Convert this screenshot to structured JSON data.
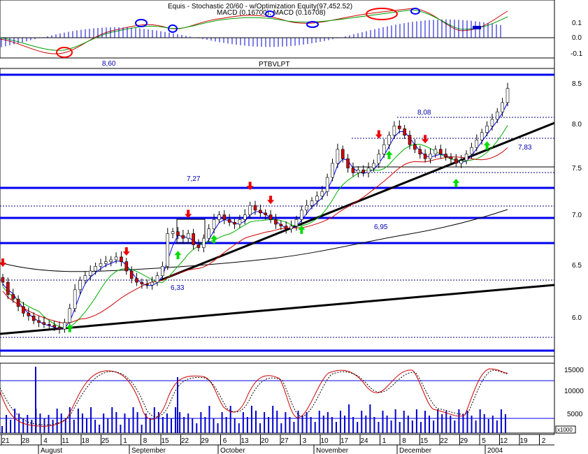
{
  "colors": {
    "background": "#ffffff",
    "hline_blue": "#0000ee",
    "trend_black": "#000000",
    "candle_up_fill": "#ffffff",
    "candle_down_fill": "#d00000",
    "ma_blue": "#0000ff",
    "ma_green": "#00b000",
    "ma_red": "#cc0000",
    "macd_bar": "#0000cc",
    "volume_bar": "#0000cc",
    "buy_arrow": "#00dd00",
    "sell_arrow": "#ee0000",
    "annotation_text": "#0000aa",
    "marker_circle_blue": "#0000ff",
    "marker_circle_red": "#ff0000"
  },
  "macd_panel": {
    "legend_line1": "Equis - Stochastic 20/60 - w/Optimization Equity(97,452.52)",
    "legend_line2": "MACD (0.16700), MACD (0.16708)",
    "y_ticks": [
      "0.1",
      "0.0",
      "-0.1"
    ]
  },
  "price_panel": {
    "symbol": "PTBVLPT",
    "y_ticks": [
      "8.5",
      "8.0",
      "7.5",
      "7.0",
      "6.5",
      "6.0"
    ],
    "annotations": [
      "8,60",
      "8,08",
      "7,83",
      "7,27",
      "6,95",
      "6,33"
    ]
  },
  "volume_panel": {
    "y_ticks": [
      "15000",
      "10000",
      "5000"
    ],
    "scale_label": "x1000"
  },
  "x_axis": {
    "day_labels": [
      "21",
      "28",
      "4",
      "11",
      "18",
      "25",
      "1",
      "8",
      "15",
      "22",
      "29",
      "6",
      "13",
      "20",
      "27",
      "3",
      "10",
      "17",
      "24",
      "1",
      "8",
      "15",
      "22",
      "29",
      "5",
      "12",
      "19",
      "2"
    ],
    "month_labels": [
      "August",
      "September",
      "October",
      "November",
      "December",
      "2004"
    ]
  },
  "chart_data": {
    "type": "candlestick",
    "title": "PTBVLPT",
    "x_range": [
      "Jul 2003",
      "Jan 2004"
    ],
    "price_ylim": [
      5.65,
      8.75
    ],
    "horizontal_levels": [
      8.6,
      8.08,
      7.83,
      7.27,
      6.95,
      6.33
    ],
    "close_series": [
      6.38,
      6.25,
      6.2,
      6.12,
      6.05,
      6.02,
      5.97,
      5.95,
      5.93,
      5.92,
      5.9,
      5.88,
      5.95,
      6.1,
      6.3,
      6.4,
      6.45,
      6.5,
      6.55,
      6.58,
      6.6,
      6.62,
      6.65,
      6.6,
      6.5,
      6.42,
      6.38,
      6.36,
      6.35,
      6.38,
      6.45,
      6.55,
      6.9,
      6.92,
      6.88,
      6.85,
      6.9,
      6.78,
      6.75,
      6.85,
      6.95,
      7.05,
      7.1,
      7.05,
      7.02,
      7.0,
      7.05,
      7.1,
      7.2,
      7.15,
      7.12,
      7.1,
      7.05,
      7.0,
      6.98,
      6.95,
      6.98,
      7.05,
      7.15,
      7.2,
      7.25,
      7.3,
      7.35,
      7.5,
      7.65,
      7.8,
      7.7,
      7.6,
      7.55,
      7.58,
      7.55,
      7.6,
      7.65,
      7.75,
      7.85,
      7.95,
      8.05,
      8.02,
      7.95,
      7.85,
      7.8,
      7.75,
      7.7,
      7.75,
      7.8,
      7.75,
      7.72,
      7.7,
      7.65,
      7.68,
      7.75,
      7.82,
      7.9,
      7.98,
      8.05,
      8.12,
      8.2,
      8.3,
      8.45
    ]
  }
}
